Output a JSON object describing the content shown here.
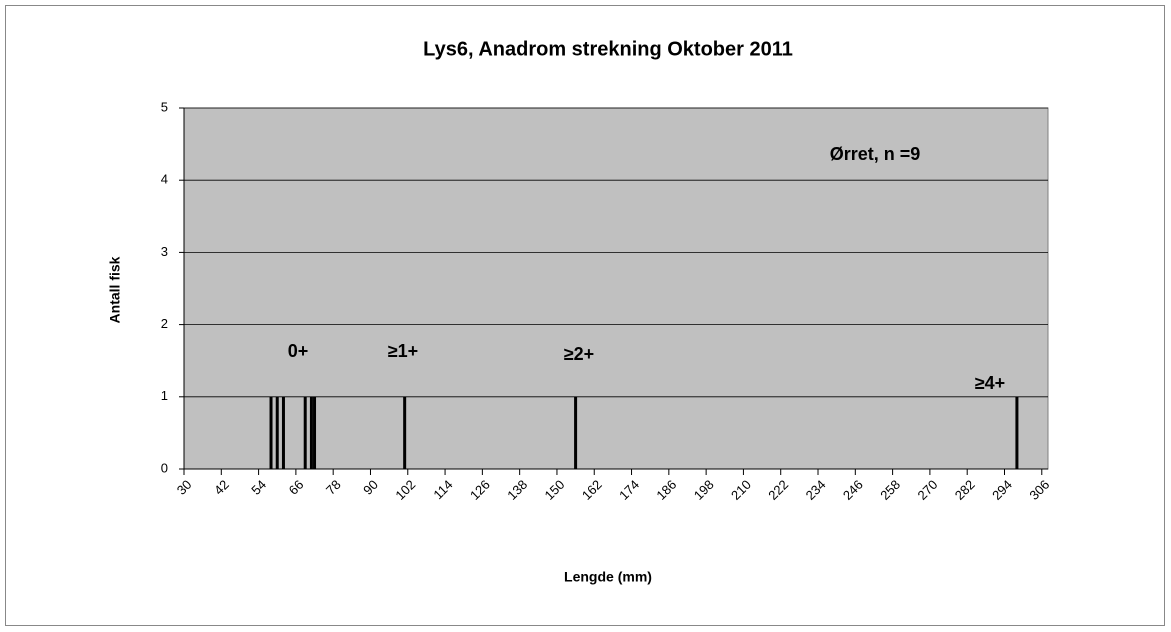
{
  "chart_data": {
    "type": "bar",
    "title": "Lys6, Anadrom strekning Oktober 2011",
    "x_label": "Lengde (mm)",
    "y_label": "Antall fisk",
    "x": [
      58,
      60,
      62,
      69,
      71,
      72,
      101,
      156,
      298
    ],
    "values": [
      1,
      1,
      1,
      1,
      1,
      1,
      1,
      1,
      1
    ],
    "color": "#000000",
    "background": "#c0c0c0",
    "xlim": [
      30,
      308
    ],
    "xticks": [
      30,
      42,
      54,
      66,
      78,
      90,
      102,
      114,
      126,
      138,
      150,
      162,
      174,
      186,
      198,
      210,
      222,
      234,
      246,
      258,
      270,
      282,
      294,
      306
    ],
    "ylim": [
      0,
      5
    ],
    "yticks": [
      0,
      1,
      2,
      3,
      4,
      5
    ],
    "grid": true,
    "annotations": [
      "Ørret, n =9",
      "0+",
      "≥1+",
      "≥2+",
      "≥4+"
    ]
  }
}
